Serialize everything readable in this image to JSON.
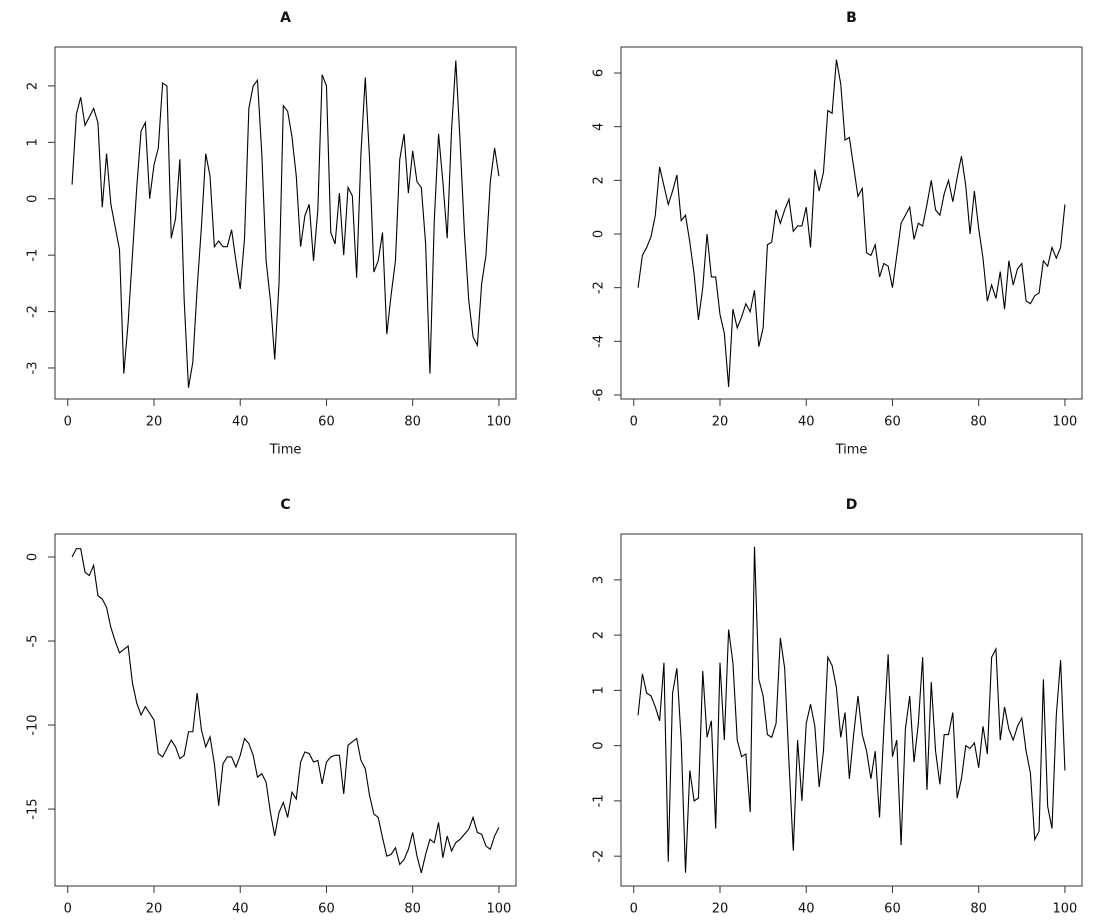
{
  "chart_data": [
    {
      "type": "line",
      "title": "A",
      "xlabel": "Time",
      "x": [
        1,
        2,
        3,
        4,
        5,
        6,
        7,
        8,
        9,
        10,
        11,
        12,
        13,
        14,
        15,
        16,
        17,
        18,
        19,
        20,
        21,
        22,
        23,
        24,
        25,
        26,
        27,
        28,
        29,
        30,
        31,
        32,
        33,
        34,
        35,
        36,
        37,
        38,
        39,
        40,
        41,
        42,
        43,
        44,
        45,
        46,
        47,
        48,
        49,
        50,
        51,
        52,
        53,
        54,
        55,
        56,
        57,
        58,
        59,
        60,
        61,
        62,
        63,
        64,
        65,
        66,
        67,
        68,
        69,
        70,
        71,
        72,
        73,
        74,
        75,
        76,
        77,
        78,
        79,
        80,
        81,
        82,
        83,
        84,
        85,
        86,
        87,
        88,
        89,
        90,
        91,
        92,
        93,
        94,
        95,
        96,
        97,
        98,
        99,
        100
      ],
      "values": [
        0.25,
        1.5,
        1.8,
        1.3,
        1.45,
        1.6,
        1.35,
        -0.15,
        0.8,
        -0.1,
        -0.5,
        -0.9,
        -3.1,
        -2.2,
        -1.0,
        0.2,
        1.2,
        1.35,
        0.0,
        0.6,
        0.9,
        2.05,
        2.0,
        -0.7,
        -0.35,
        0.7,
        -1.8,
        -3.35,
        -2.9,
        -1.6,
        -0.5,
        0.8,
        0.4,
        -0.85,
        -0.75,
        -0.85,
        -0.85,
        -0.55,
        -1.1,
        -1.6,
        -0.7,
        1.6,
        2.0,
        2.1,
        0.8,
        -1.1,
        -1.8,
        -2.85,
        -1.5,
        1.65,
        1.55,
        1.1,
        0.4,
        -0.85,
        -0.3,
        -0.1,
        -1.1,
        -0.2,
        2.2,
        2.0,
        -0.6,
        -0.8,
        0.1,
        -1.0,
        0.2,
        0.05,
        -1.4,
        0.8,
        2.15,
        0.7,
        -1.3,
        -1.1,
        -0.6,
        -2.4,
        -1.7,
        -1.1,
        0.7,
        1.15,
        0.1,
        0.85,
        0.3,
        0.2,
        -0.8,
        -3.1,
        -0.4,
        1.15,
        0.3,
        -0.7,
        1.2,
        2.45,
        1.0,
        -0.6,
        -1.8,
        -2.45,
        -2.6,
        -1.5,
        -1.0,
        0.3,
        0.9,
        0.4
      ],
      "color": "#000000",
      "xlim": [
        -2.96,
        103.96
      ],
      "ylim": [
        -3.55,
        2.69
      ],
      "xticks": [
        0,
        20,
        40,
        60,
        80,
        100
      ],
      "yticks": [
        -3,
        -2,
        -1,
        0,
        1,
        2
      ]
    },
    {
      "type": "line",
      "title": "B",
      "xlabel": "Time",
      "x": [
        1,
        2,
        3,
        4,
        5,
        6,
        7,
        8,
        9,
        10,
        11,
        12,
        13,
        14,
        15,
        16,
        17,
        18,
        19,
        20,
        21,
        22,
        23,
        24,
        25,
        26,
        27,
        28,
        29,
        30,
        31,
        32,
        33,
        34,
        35,
        36,
        37,
        38,
        39,
        40,
        41,
        42,
        43,
        44,
        45,
        46,
        47,
        48,
        49,
        50,
        51,
        52,
        53,
        54,
        55,
        56,
        57,
        58,
        59,
        60,
        61,
        62,
        63,
        64,
        65,
        66,
        67,
        68,
        69,
        70,
        71,
        72,
        73,
        74,
        75,
        76,
        77,
        78,
        79,
        80,
        81,
        82,
        83,
        84,
        85,
        86,
        87,
        88,
        89,
        90,
        91,
        92,
        93,
        94,
        95,
        96,
        97,
        98,
        99,
        100
      ],
      "values": [
        -2.0,
        -0.8,
        -0.5,
        -0.1,
        0.7,
        2.5,
        1.8,
        1.1,
        1.6,
        2.2,
        0.5,
        0.7,
        -0.3,
        -1.5,
        -3.2,
        -2.0,
        0.0,
        -1.6,
        -1.6,
        -3.0,
        -3.7,
        -5.7,
        -2.8,
        -3.5,
        -3.1,
        -2.6,
        -2.9,
        -2.1,
        -4.2,
        -3.5,
        -0.4,
        -0.3,
        0.9,
        0.4,
        0.9,
        1.3,
        0.1,
        0.3,
        0.3,
        1.0,
        -0.5,
        2.4,
        1.6,
        2.3,
        4.6,
        4.5,
        6.5,
        5.6,
        3.5,
        3.6,
        2.5,
        1.4,
        1.7,
        -0.7,
        -0.8,
        -0.4,
        -1.6,
        -1.1,
        -1.2,
        -2.0,
        -0.8,
        0.4,
        0.7,
        1.0,
        -0.2,
        0.4,
        0.3,
        1.1,
        2.0,
        0.9,
        0.7,
        1.5,
        2.0,
        1.2,
        2.1,
        2.9,
        1.8,
        0.0,
        1.6,
        0.2,
        -0.9,
        -2.5,
        -1.9,
        -2.4,
        -1.4,
        -2.8,
        -1.0,
        -1.9,
        -1.3,
        -1.1,
        -2.5,
        -2.6,
        -2.3,
        -2.2,
        -1.0,
        -1.2,
        -0.5,
        -0.9,
        -0.5,
        1.1
      ],
      "color": "#000000",
      "xlim": [
        -2.96,
        103.96
      ],
      "ylim": [
        -6.15,
        6.97
      ],
      "xticks": [
        0,
        20,
        40,
        60,
        80,
        100
      ],
      "yticks": [
        -6,
        -4,
        -2,
        0,
        2,
        4,
        6
      ]
    },
    {
      "type": "line",
      "title": "C",
      "x": [
        1,
        2,
        3,
        4,
        5,
        6,
        7,
        8,
        9,
        10,
        11,
        12,
        13,
        14,
        15,
        16,
        17,
        18,
        19,
        20,
        21,
        22,
        23,
        24,
        25,
        26,
        27,
        28,
        29,
        30,
        31,
        32,
        33,
        34,
        35,
        36,
        37,
        38,
        39,
        40,
        41,
        42,
        43,
        44,
        45,
        46,
        47,
        48,
        49,
        50,
        51,
        52,
        53,
        54,
        55,
        56,
        57,
        58,
        59,
        60,
        61,
        62,
        63,
        64,
        65,
        66,
        67,
        68,
        69,
        70,
        71,
        72,
        73,
        74,
        75,
        76,
        77,
        78,
        79,
        80,
        81,
        82,
        83,
        84,
        85,
        86,
        87,
        88,
        89,
        90,
        91,
        92,
        93,
        94,
        95,
        96,
        97,
        98,
        99,
        100
      ],
      "values": [
        0.0,
        0.5,
        0.5,
        -0.9,
        -1.1,
        -0.5,
        -2.3,
        -2.5,
        -3.0,
        -4.2,
        -5.0,
        -5.7,
        -5.5,
        -5.3,
        -7.5,
        -8.7,
        -9.4,
        -8.9,
        -9.3,
        -9.7,
        -11.7,
        -11.9,
        -11.4,
        -10.9,
        -11.3,
        -12.0,
        -11.8,
        -10.4,
        -10.4,
        -8.1,
        -10.3,
        -11.3,
        -10.7,
        -12.3,
        -14.8,
        -12.3,
        -11.9,
        -11.9,
        -12.5,
        -11.8,
        -10.8,
        -11.1,
        -11.8,
        -13.1,
        -12.9,
        -13.4,
        -15.2,
        -16.6,
        -15.2,
        -14.6,
        -15.5,
        -14.0,
        -14.4,
        -12.2,
        -11.6,
        -11.7,
        -12.2,
        -12.1,
        -13.5,
        -12.2,
        -11.9,
        -11.8,
        -11.8,
        -14.1,
        -11.2,
        -11.0,
        -10.8,
        -12.1,
        -12.6,
        -14.2,
        -15.3,
        -15.5,
        -16.7,
        -17.8,
        -17.7,
        -17.3,
        -18.3,
        -18.0,
        -17.4,
        -16.4,
        -17.8,
        -18.8,
        -17.7,
        -16.8,
        -17.0,
        -15.8,
        -17.9,
        -16.6,
        -17.5,
        -17.0,
        -16.8,
        -16.5,
        -16.2,
        -15.5,
        -16.4,
        -16.5,
        -17.2,
        -17.4,
        -16.6,
        -16.1
      ],
      "color": "#000000",
      "xlim": [
        -2.96,
        103.96
      ],
      "ylim": [
        -19.58,
        1.37
      ],
      "xticks": [
        0,
        20,
        40,
        60,
        80,
        100
      ],
      "yticks": [
        -15,
        -10,
        -5,
        0
      ]
    },
    {
      "type": "line",
      "title": "D",
      "x": [
        1,
        2,
        3,
        4,
        5,
        6,
        7,
        8,
        9,
        10,
        11,
        12,
        13,
        14,
        15,
        16,
        17,
        18,
        19,
        20,
        21,
        22,
        23,
        24,
        25,
        26,
        27,
        28,
        29,
        30,
        31,
        32,
        33,
        34,
        35,
        36,
        37,
        38,
        39,
        40,
        41,
        42,
        43,
        44,
        45,
        46,
        47,
        48,
        49,
        50,
        51,
        52,
        53,
        54,
        55,
        56,
        57,
        58,
        59,
        60,
        61,
        62,
        63,
        64,
        65,
        66,
        67,
        68,
        69,
        70,
        71,
        72,
        73,
        74,
        75,
        76,
        77,
        78,
        79,
        80,
        81,
        82,
        83,
        84,
        85,
        86,
        87,
        88,
        89,
        90,
        91,
        92,
        93,
        94,
        95,
        96,
        97,
        98,
        99,
        100
      ],
      "values": [
        0.55,
        1.3,
        0.95,
        0.9,
        0.7,
        0.45,
        1.5,
        -2.1,
        0.95,
        1.4,
        0.1,
        -2.3,
        -0.45,
        -1.0,
        -0.95,
        1.35,
        0.15,
        0.45,
        -1.5,
        1.5,
        0.1,
        2.1,
        1.5,
        0.1,
        -0.2,
        -0.15,
        -1.2,
        3.6,
        1.2,
        0.9,
        0.2,
        0.15,
        0.4,
        1.95,
        1.4,
        -0.3,
        -1.9,
        0.1,
        -1.0,
        0.4,
        0.75,
        0.35,
        -0.75,
        -0.1,
        1.6,
        1.45,
        1.05,
        0.15,
        0.6,
        -0.6,
        0.2,
        0.9,
        0.2,
        -0.1,
        -0.6,
        -0.1,
        -1.3,
        0.3,
        1.65,
        -0.2,
        0.1,
        -1.8,
        0.3,
        0.9,
        -0.3,
        0.4,
        1.6,
        -0.8,
        1.15,
        -0.1,
        -0.7,
        0.2,
        0.2,
        0.6,
        -0.95,
        -0.6,
        0.0,
        -0.05,
        0.05,
        -0.4,
        0.35,
        -0.15,
        1.6,
        1.75,
        0.1,
        0.7,
        0.3,
        0.1,
        0.35,
        0.5,
        -0.1,
        -0.5,
        -1.7,
        -1.55,
        1.2,
        -1.1,
        -1.5,
        0.55,
        1.55,
        -0.45
      ],
      "color": "#000000",
      "xlim": [
        -2.96,
        103.96
      ],
      "ylim": [
        -2.54,
        3.83
      ],
      "xticks": [
        0,
        20,
        40,
        60,
        80,
        100
      ],
      "yticks": [
        -2,
        -1,
        0,
        1,
        2,
        3
      ]
    }
  ]
}
